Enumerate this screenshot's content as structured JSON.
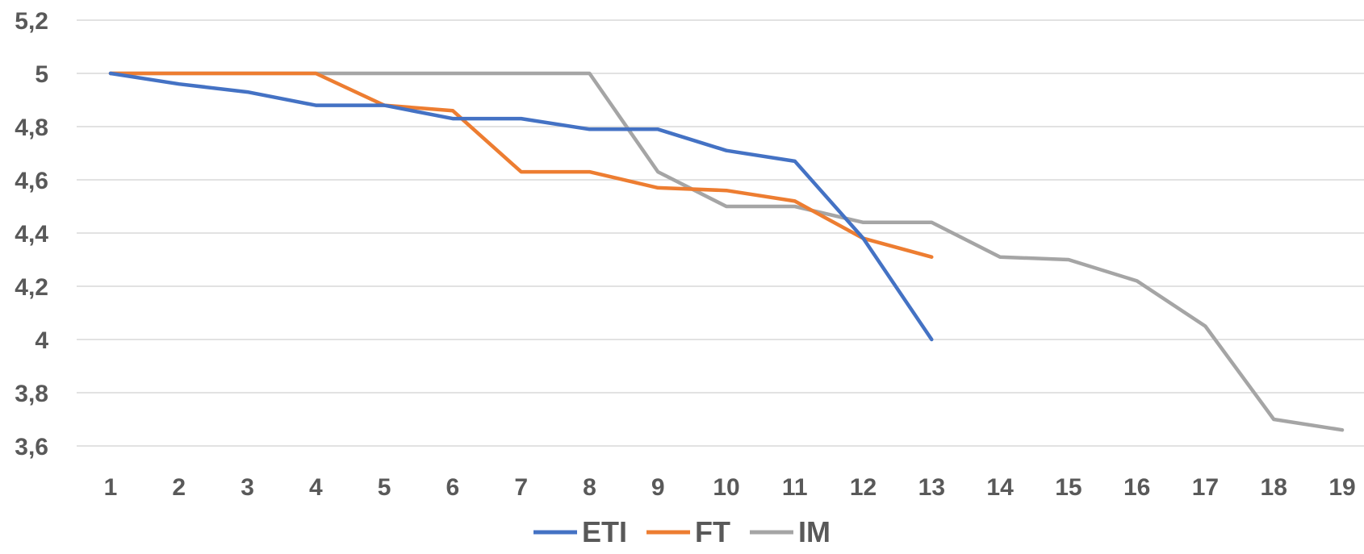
{
  "chart_data": {
    "type": "line",
    "title": "",
    "xlabel": "",
    "ylabel": "",
    "x": [
      1,
      2,
      3,
      4,
      5,
      6,
      7,
      8,
      9,
      10,
      11,
      12,
      13,
      14,
      15,
      16,
      17,
      18,
      19
    ],
    "x_tick_labels": [
      "1",
      "2",
      "3",
      "4",
      "5",
      "6",
      "7",
      "8",
      "9",
      "10",
      "11",
      "12",
      "13",
      "14",
      "15",
      "16",
      "17",
      "18",
      "19"
    ],
    "ylim": [
      3.6,
      5.2
    ],
    "y_ticks": [
      3.6,
      3.8,
      4.0,
      4.2,
      4.4,
      4.6,
      4.8,
      5.0,
      5.2
    ],
    "y_tick_labels": [
      "3,6",
      "3,8",
      "4",
      "4,2",
      "4,4",
      "4,6",
      "4,8",
      "5",
      "5,2"
    ],
    "grid": true,
    "legend_position": "bottom",
    "series": [
      {
        "name": "ETI",
        "color": "#4472c4",
        "x": [
          1,
          2,
          3,
          4,
          5,
          6,
          7,
          8,
          9,
          10,
          11,
          12,
          13
        ],
        "values": [
          5.0,
          4.96,
          4.93,
          4.88,
          4.88,
          4.83,
          4.83,
          4.79,
          4.79,
          4.71,
          4.67,
          4.38,
          4.0
        ]
      },
      {
        "name": "FT",
        "color": "#ed7d31",
        "x": [
          1,
          2,
          3,
          4,
          5,
          6,
          7,
          8,
          9,
          10,
          11,
          12,
          13
        ],
        "values": [
          5.0,
          5.0,
          5.0,
          5.0,
          4.88,
          4.86,
          4.63,
          4.63,
          4.57,
          4.56,
          4.52,
          4.38,
          4.31
        ]
      },
      {
        "name": "IM",
        "color": "#a5a5a5",
        "x": [
          1,
          2,
          3,
          4,
          5,
          6,
          7,
          8,
          9,
          10,
          11,
          12,
          13,
          14,
          15,
          16,
          17,
          18,
          19
        ],
        "values": [
          5.0,
          5.0,
          5.0,
          5.0,
          5.0,
          5.0,
          5.0,
          5.0,
          4.63,
          4.5,
          4.5,
          4.44,
          4.44,
          4.31,
          4.3,
          4.22,
          4.05,
          3.7,
          3.66
        ]
      }
    ]
  }
}
